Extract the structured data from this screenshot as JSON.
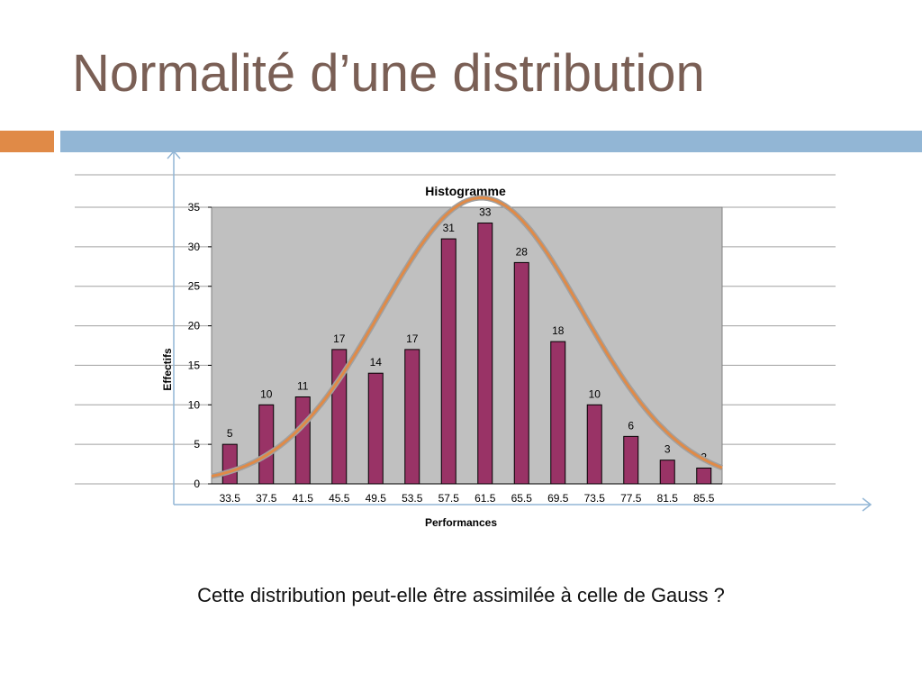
{
  "slide": {
    "title": "Normalité d’une distribution",
    "caption": "Cette distribution peut-elle être assimilée à celle de Gauss ?"
  },
  "colors": {
    "title": "#7a5f55",
    "accent_orange": "#e08a47",
    "accent_blue": "#92b6d5",
    "bar_fill": "#993366",
    "plot_background": "#c0c0c0",
    "curve": "#e08a47",
    "axis_arrow": "#92b6d5"
  },
  "chart_data": {
    "type": "bar",
    "title": "Histogramme",
    "xlabel": "Performances",
    "ylabel": "Effectifs",
    "categories": [
      "33.5",
      "37.5",
      "41.5",
      "45.5",
      "49.5",
      "53.5",
      "57.5",
      "61.5",
      "65.5",
      "69.5",
      "73.5",
      "77.5",
      "81.5",
      "85.5"
    ],
    "values": [
      5,
      10,
      11,
      17,
      14,
      17,
      31,
      33,
      28,
      18,
      10,
      6,
      3,
      2
    ],
    "data_labels": [
      "5",
      "10",
      "11",
      "17",
      "14",
      "17",
      "31",
      "33",
      "28",
      "18",
      "10",
      "6",
      "3",
      "2"
    ],
    "y_ticks": [
      "0",
      "5",
      "10",
      "15",
      "20",
      "25",
      "30",
      "35"
    ],
    "ylim": [
      0,
      35
    ],
    "grid": true,
    "legend": "none",
    "overlay": {
      "type": "line",
      "shape": "normal-curve",
      "peak_category_index": 6.9,
      "peak_value": 36.2,
      "spread_categories": 2.75
    }
  }
}
